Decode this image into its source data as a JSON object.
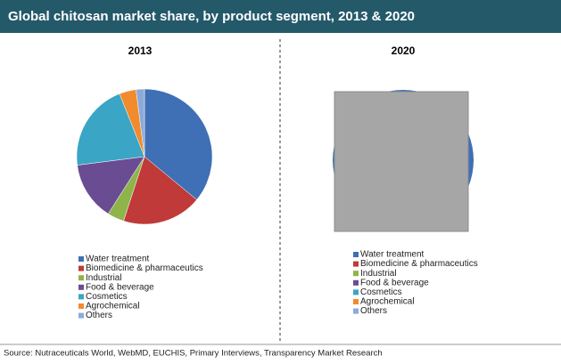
{
  "title": "Global chitosan market share, by product segment, 2013 & 2020",
  "source": "Source: Nutraceuticals World, WebMD, EUCHIS, Primary Interviews, Transparency Market Research",
  "chart_data": [
    {
      "type": "pie",
      "title": "2013",
      "categories": [
        "Water treatment",
        "Biomedicine  & pharmaceutics",
        "Industrial",
        "Food & beverage",
        "Cosmetics",
        "Agrochemical",
        "Others"
      ],
      "values": [
        36,
        19,
        4,
        14,
        21,
        4,
        2
      ],
      "colors": [
        "#3f6fb5",
        "#bf3a38",
        "#8fb44a",
        "#6a4c93",
        "#3aa5c4",
        "#f28a2e",
        "#8aabd8"
      ]
    },
    {
      "type": "pie",
      "title": "2020",
      "categories": [
        "Water treatment",
        "Biomedicine  & pharmaceutics",
        "Industrial",
        "Food & beverage",
        "Cosmetics",
        "Agrochemical",
        "Others"
      ],
      "colors": [
        "#3f6fb5",
        "#bf3a38",
        "#8fb44a",
        "#6a4c93",
        "#3aa5c4",
        "#f28a2e",
        "#8aabd8"
      ]
    }
  ]
}
